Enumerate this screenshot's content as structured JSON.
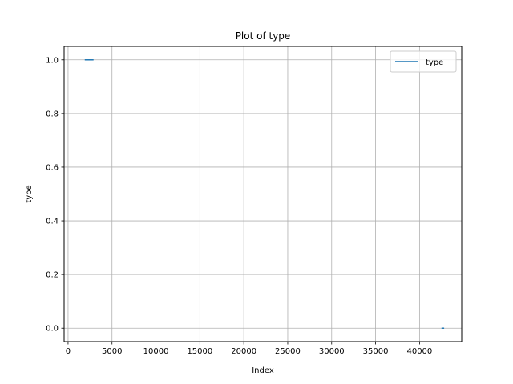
{
  "chart_data": {
    "type": "line",
    "title": "Plot of type",
    "xlabel": "Index",
    "ylabel": "type",
    "xlim": [
      -450,
      44800
    ],
    "ylim": [
      -0.05,
      1.05
    ],
    "xticks": [
      0,
      5000,
      10000,
      15000,
      20000,
      25000,
      30000,
      35000,
      40000
    ],
    "xtick_labels": [
      "0",
      "5000",
      "10000",
      "15000",
      "20000",
      "25000",
      "30000",
      "35000",
      "40000"
    ],
    "yticks": [
      0.0,
      0.2,
      0.4,
      0.6,
      0.8,
      1.0
    ],
    "ytick_labels": [
      "0.0",
      "0.2",
      "0.4",
      "0.6",
      "0.8",
      "1.0"
    ],
    "grid": true,
    "legend": {
      "position": "top-right",
      "entries": [
        "type"
      ]
    },
    "series": [
      {
        "name": "type",
        "color": "#1f77b4",
        "segments": [
          {
            "x": [
              1900,
              2900
            ],
            "y": [
              1.0,
              1.0
            ]
          },
          {
            "x": [
              42500,
              42800
            ],
            "y": [
              0.0,
              0.0
            ]
          }
        ]
      }
    ]
  }
}
